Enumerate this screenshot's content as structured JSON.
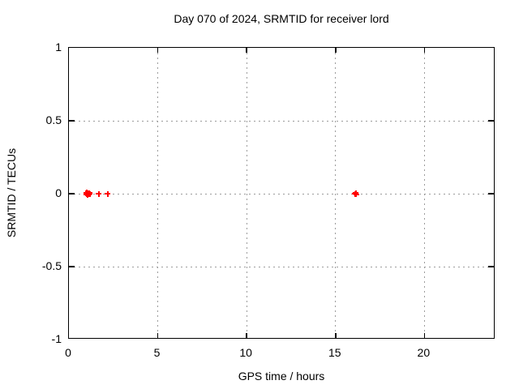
{
  "chart_data": {
    "type": "scatter",
    "title": "Day 070 of 2024, SRMTID for receiver lord",
    "xlabel": "GPS time / hours",
    "ylabel": "SRMTID / TECUs",
    "xlim": [
      0,
      24
    ],
    "ylim": [
      -1,
      1
    ],
    "xticks": [
      0,
      5,
      10,
      15,
      20
    ],
    "xtick_labels": [
      "0",
      "5",
      "10",
      "15",
      "20"
    ],
    "yticks": [
      -1,
      -0.5,
      0,
      0.5,
      1
    ],
    "ytick_labels": [
      "-1",
      "-0.5",
      "0",
      "0.5",
      "1"
    ],
    "grid": true,
    "legend": "none",
    "marker": "plus",
    "colors": {
      "marker": "#ff0000",
      "grid": "#9c9c9c",
      "axis": "#000000",
      "background": "#ffffff"
    },
    "series": [
      {
        "name": "SRMTID",
        "points": [
          [
            0.98,
            0.004
          ],
          [
            1.0,
            -0.004
          ],
          [
            1.02,
            0.006
          ],
          [
            1.04,
            0.0
          ],
          [
            1.06,
            -0.006
          ],
          [
            1.08,
            0.004
          ],
          [
            1.1,
            0.0
          ],
          [
            1.12,
            -0.004
          ],
          [
            1.15,
            0.005
          ],
          [
            1.18,
            0.0
          ],
          [
            1.67,
            0.0
          ],
          [
            2.18,
            0.0
          ],
          [
            16.1,
            0.0
          ],
          [
            16.13,
            0.004
          ],
          [
            16.16,
            -0.004
          ]
        ]
      }
    ]
  }
}
